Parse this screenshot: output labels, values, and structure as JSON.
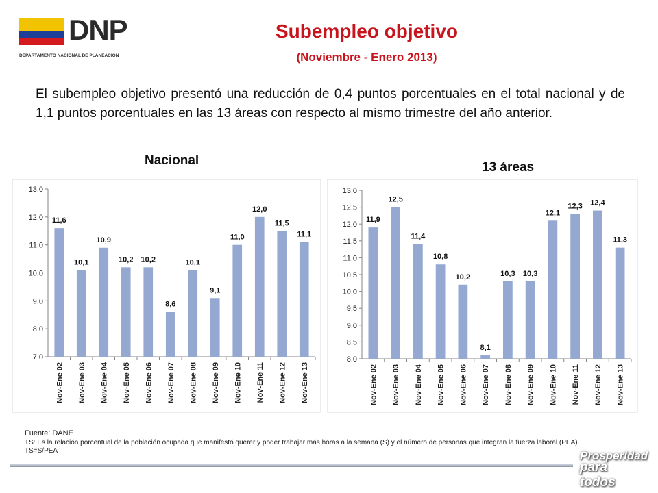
{
  "header": {
    "logo_text": "DNP",
    "logo_subtitle": "DEPARTAMENTO NACIONAL DE PLANEACIÓN",
    "title": "Subempleo objetivo",
    "subtitle": "(Noviembre -  Enero 2013)"
  },
  "intro": "El subempleo objetivo presentó una reducción de 0,4 puntos porcentuales en el total nacional y de 1,1 puntos porcentuales en las 13 áreas con respecto al mismo trimestre del año anterior.",
  "chart_data": [
    {
      "type": "bar",
      "title": "Nacional",
      "categories": [
        "Nov-Ene 02",
        "Nov-Ene 03",
        "Nov-Ene 04",
        "Nov-Ene 05",
        "Nov-Ene 06",
        "Nov-Ene 07",
        "Nov-Ene 08",
        "Nov-Ene 09",
        "Nov-Ene 10",
        "Nov-Ene 11",
        "Nov-Ene 12",
        "Nov-Ene 13"
      ],
      "values": [
        11.6,
        10.1,
        10.9,
        10.2,
        10.2,
        8.6,
        10.1,
        9.1,
        11.0,
        12.0,
        11.5,
        11.1
      ],
      "value_labels": [
        "11,6",
        "10,1",
        "10,9",
        "10,2",
        "10,2",
        "8,6",
        "10,1",
        "9,1",
        "11,0",
        "12,0",
        "11,5",
        "11,1"
      ],
      "ylim": [
        7.0,
        13.0
      ],
      "yticks": [
        "7,0",
        "8,0",
        "9,0",
        "10,0",
        "11,0",
        "12,0",
        "13,0"
      ],
      "bar_color": "#94a8d2",
      "grid": false
    },
    {
      "type": "bar",
      "title": "13 áreas",
      "categories": [
        "Nov-Ene 02",
        "Nov-Ene 03",
        "Nov-Ene 04",
        "Nov-Ene 05",
        "Nov-Ene 06",
        "Nov-Ene 07",
        "Nov-Ene 08",
        "Nov-Ene 09",
        "Nov-Ene 10",
        "Nov-Ene 11",
        "Nov-Ene 12",
        "Nov-Ene 13"
      ],
      "values": [
        11.9,
        12.5,
        11.4,
        10.8,
        10.2,
        8.1,
        10.3,
        10.3,
        12.1,
        12.3,
        12.4,
        11.3
      ],
      "value_labels": [
        "11,9",
        "12,5",
        "11,4",
        "10,8",
        "10,2",
        "8,1",
        "10,3",
        "10,3",
        "12,1",
        "12,3",
        "12,4",
        "11,3"
      ],
      "ylim": [
        8.0,
        13.0
      ],
      "yticks": [
        "8,0",
        "8,5",
        "9,0",
        "9,5",
        "10,0",
        "10,5",
        "11,0",
        "11,5",
        "12,0",
        "12,5",
        "13,0"
      ],
      "bar_color": "#94a8d2",
      "grid": false
    }
  ],
  "footer": {
    "source": "Fuente: DANE",
    "note": "TS:  Es la relación porcentual de la población ocupada que manifestó querer y poder trabajar más horas a la semana (S) y el número de personas que integran la fuerza laboral (PEA). TS=S/PEA"
  },
  "badge": {
    "line1": "Prosperidad",
    "line2": "para todos"
  }
}
